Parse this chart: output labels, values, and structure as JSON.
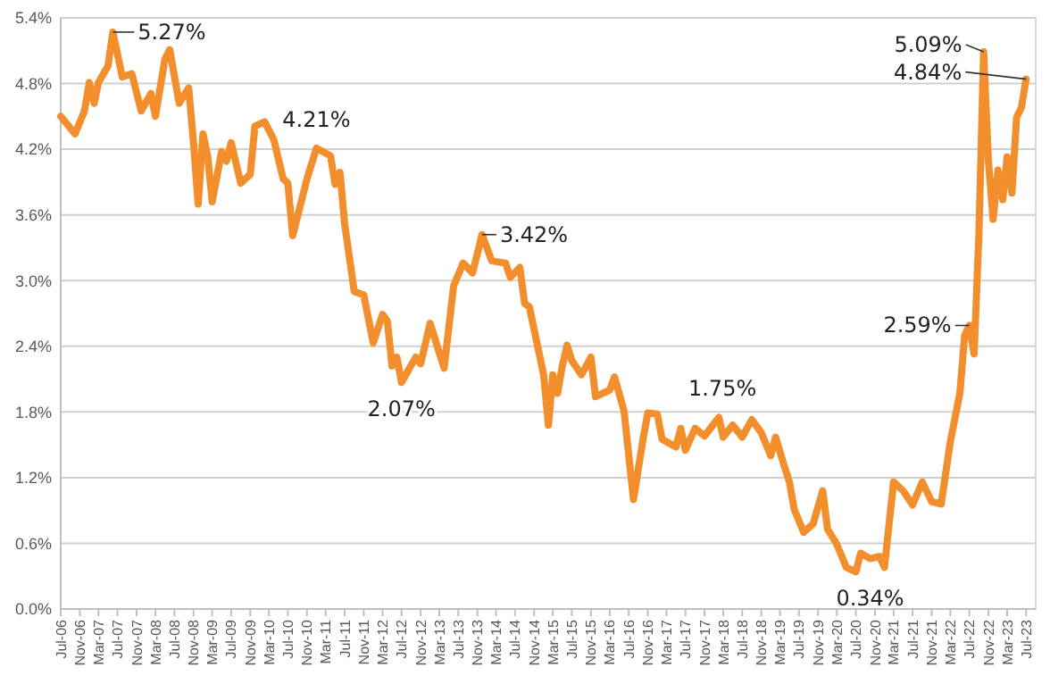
{
  "chart_data": {
    "type": "line",
    "grid": "y",
    "line_style": "solid",
    "marker": "none",
    "xlim": [
      "2006-07",
      "2023-09"
    ],
    "ylim": [
      0,
      5.4
    ],
    "yticks": [
      {
        "value": 0,
        "label": "0.0%"
      },
      {
        "value": 0.6,
        "label": "0.6%"
      },
      {
        "value": 1.2,
        "label": "1.2%"
      },
      {
        "value": 1.8,
        "label": "1.8%"
      },
      {
        "value": 2.4,
        "label": "2.4%"
      },
      {
        "value": 3,
        "label": "3.0%"
      },
      {
        "value": 3.6,
        "label": "3.6%"
      },
      {
        "value": 4.2,
        "label": "4.2%"
      },
      {
        "value": 4.8,
        "label": "4.8%"
      },
      {
        "value": 5.4,
        "label": "5.4%"
      }
    ],
    "xticks": [
      {
        "value": "2006-07",
        "label": "Jul-06"
      },
      {
        "value": "2006-11",
        "label": "Nov-06"
      },
      {
        "value": "2007-03",
        "label": "Mar-07"
      },
      {
        "value": "2007-07",
        "label": "Jul-07"
      },
      {
        "value": "2007-11",
        "label": "Nov-07"
      },
      {
        "value": "2008-03",
        "label": "Mar-08"
      },
      {
        "value": "2008-07",
        "label": "Jul-08"
      },
      {
        "value": "2008-11",
        "label": "Nov-08"
      },
      {
        "value": "2009-03",
        "label": "Mar-09"
      },
      {
        "value": "2009-07",
        "label": "Jul-09"
      },
      {
        "value": "2009-11",
        "label": "Nov-09"
      },
      {
        "value": "2010-03",
        "label": "Mar-10"
      },
      {
        "value": "2010-07",
        "label": "Jul-10"
      },
      {
        "value": "2010-11",
        "label": "Nov-10"
      },
      {
        "value": "2011-03",
        "label": "Mar-11"
      },
      {
        "value": "2011-07",
        "label": "Jul-11"
      },
      {
        "value": "2011-11",
        "label": "Nov-11"
      },
      {
        "value": "2012-03",
        "label": "Mar-12"
      },
      {
        "value": "2012-07",
        "label": "Jul-12"
      },
      {
        "value": "2012-11",
        "label": "Nov-12"
      },
      {
        "value": "2013-03",
        "label": "Mar-13"
      },
      {
        "value": "2013-07",
        "label": "Jul-13"
      },
      {
        "value": "2013-11",
        "label": "Nov-13"
      },
      {
        "value": "2014-03",
        "label": "Mar-14"
      },
      {
        "value": "2014-07",
        "label": "Jul-14"
      },
      {
        "value": "2014-11",
        "label": "Nov-14"
      },
      {
        "value": "2015-03",
        "label": "Mar-15"
      },
      {
        "value": "2015-07",
        "label": "Jul-15"
      },
      {
        "value": "2015-11",
        "label": "Nov-15"
      },
      {
        "value": "2016-03",
        "label": "Mar-16"
      },
      {
        "value": "2016-07",
        "label": "Jul-16"
      },
      {
        "value": "2016-11",
        "label": "Nov-16"
      },
      {
        "value": "2017-03",
        "label": "Mar-17"
      },
      {
        "value": "2017-07",
        "label": "Jul-17"
      },
      {
        "value": "2017-11",
        "label": "Nov-17"
      },
      {
        "value": "2018-03",
        "label": "Mar-18"
      },
      {
        "value": "2018-07",
        "label": "Jul-18"
      },
      {
        "value": "2018-11",
        "label": "Nov-18"
      },
      {
        "value": "2019-03",
        "label": "Mar-19"
      },
      {
        "value": "2019-07",
        "label": "Jul-19"
      },
      {
        "value": "2019-11",
        "label": "Nov-19"
      },
      {
        "value": "2020-03",
        "label": "Mar-20"
      },
      {
        "value": "2020-07",
        "label": "Jul-20"
      },
      {
        "value": "2020-11",
        "label": "Nov-20"
      },
      {
        "value": "2021-03",
        "label": "Mar-21"
      },
      {
        "value": "2021-07",
        "label": "Jul-21"
      },
      {
        "value": "2021-11",
        "label": "Nov-21"
      },
      {
        "value": "2022-03",
        "label": "Mar-22"
      },
      {
        "value": "2022-07",
        "label": "Jul-22"
      },
      {
        "value": "2022-11",
        "label": "Nov-22"
      },
      {
        "value": "2023-03",
        "label": "Mar-23"
      },
      {
        "value": "2023-07",
        "label": "Jul-23"
      }
    ],
    "annotations": [
      {
        "text": "5.27%",
        "x": "2007-06",
        "y": 5.27
      },
      {
        "text": "4.21%",
        "x": "2011-01",
        "y": 4.21
      },
      {
        "text": "2.07%",
        "x": "2012-07",
        "y": 2.07
      },
      {
        "text": "3.42%",
        "x": "2013-12",
        "y": 3.42
      },
      {
        "text": "1.75%",
        "x": "2018-02",
        "y": 1.75
      },
      {
        "text": "0.34%",
        "x": "2020-07",
        "y": 0.34
      },
      {
        "text": "2.59%",
        "x": "2022-07",
        "y": 2.59
      },
      {
        "text": "5.09%",
        "x": "2022-10",
        "y": 5.09
      },
      {
        "text": "4.84%",
        "x": "2023-07",
        "y": 4.84
      }
    ],
    "series": [
      {
        "color": "#f28e2b",
        "x": [
          "2006-07",
          "2006-10",
          "2006-12",
          "2007-01",
          "2007-02",
          "2007-03",
          "2007-05",
          "2007-06",
          "2007-08",
          "2007-10",
          "2007-12",
          "2008-02",
          "2008-03",
          "2008-05",
          "2008-06",
          "2008-08",
          "2008-10",
          "2008-11",
          "2008-12",
          "2009-01",
          "2009-02",
          "2009-03",
          "2009-05",
          "2009-06",
          "2009-07",
          "2009-09",
          "2009-11",
          "2009-12",
          "2010-02",
          "2010-04",
          "2010-06",
          "2010-07",
          "2010-08",
          "2010-11",
          "2011-01",
          "2011-04",
          "2011-05",
          "2011-06",
          "2011-07",
          "2011-09",
          "2011-11",
          "2012-01",
          "2012-03",
          "2012-04",
          "2012-05",
          "2012-06",
          "2012-07",
          "2012-10",
          "2012-11",
          "2013-01",
          "2013-04",
          "2013-06",
          "2013-08",
          "2013-10",
          "2013-12",
          "2014-02",
          "2014-05",
          "2014-06",
          "2014-08",
          "2014-09",
          "2014-10",
          "2014-12",
          "2015-01",
          "2015-02",
          "2015-03",
          "2015-04",
          "2015-05",
          "2015-06",
          "2015-07",
          "2015-09",
          "2015-11",
          "2015-12",
          "2016-03",
          "2016-04",
          "2016-06",
          "2016-08",
          "2016-10",
          "2016-11",
          "2017-01",
          "2017-02",
          "2017-05",
          "2017-06",
          "2017-07",
          "2017-09",
          "2017-11",
          "2018-02",
          "2018-03",
          "2018-05",
          "2018-07",
          "2018-09",
          "2018-11",
          "2019-01",
          "2019-02",
          "2019-04",
          "2019-05",
          "2019-06",
          "2019-08",
          "2019-10",
          "2019-12",
          "2020-01",
          "2020-03",
          "2020-05",
          "2020-07",
          "2020-08",
          "2020-10",
          "2020-12",
          "2021-01",
          "2021-03",
          "2021-05",
          "2021-07",
          "2021-09",
          "2021-11",
          "2022-01",
          "2022-03",
          "2022-05",
          "2022-06",
          "2022-07",
          "2022-08",
          "2022-09",
          "2022-10",
          "2022-11",
          "2022-12",
          "2023-01",
          "2023-02",
          "2023-03",
          "2023-04",
          "2023-05",
          "2023-06",
          "2023-07"
        ],
        "values": [
          4.5,
          4.34,
          4.55,
          4.81,
          4.62,
          4.81,
          4.96,
          5.27,
          4.86,
          4.89,
          4.55,
          4.71,
          4.5,
          5.02,
          5.11,
          4.62,
          4.76,
          4.26,
          3.7,
          4.34,
          4.13,
          3.72,
          4.18,
          4.09,
          4.26,
          3.89,
          3.97,
          4.41,
          4.45,
          4.29,
          3.93,
          3.89,
          3.41,
          3.93,
          4.21,
          4.14,
          3.88,
          3.99,
          3.52,
          2.9,
          2.87,
          2.43,
          2.69,
          2.63,
          2.22,
          2.3,
          2.07,
          2.3,
          2.24,
          2.61,
          2.2,
          2.95,
          3.16,
          3.07,
          3.42,
          3.18,
          3.16,
          3.03,
          3.12,
          2.79,
          2.76,
          2.35,
          2.14,
          1.68,
          2.14,
          1.97,
          2.22,
          2.41,
          2.27,
          2.14,
          2.3,
          1.94,
          2.0,
          2.12,
          1.81,
          1.0,
          1.55,
          1.79,
          1.78,
          1.55,
          1.48,
          1.65,
          1.45,
          1.65,
          1.58,
          1.75,
          1.57,
          1.68,
          1.57,
          1.73,
          1.61,
          1.4,
          1.57,
          1.29,
          1.16,
          0.91,
          0.7,
          0.78,
          1.08,
          0.73,
          0.59,
          0.38,
          0.34,
          0.51,
          0.46,
          0.48,
          0.38,
          1.16,
          1.08,
          0.95,
          1.16,
          0.98,
          0.96,
          1.53,
          1.97,
          2.5,
          2.59,
          2.33,
          3.44,
          5.09,
          4.09,
          3.56,
          4.01,
          3.74,
          4.13,
          3.8,
          4.49,
          4.58,
          4.84
        ]
      }
    ]
  }
}
